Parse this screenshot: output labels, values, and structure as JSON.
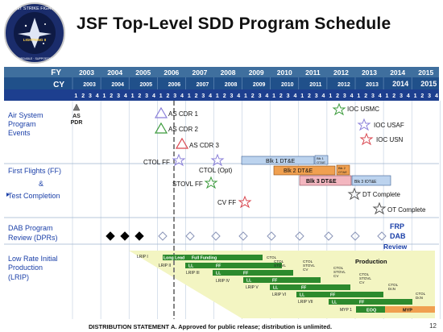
{
  "header": {
    "logo_lines": [
      "JOINT STRIKE FIGHTER",
      "LIGHTNING II",
      "AFFORDABLE · SUPPORTABLE"
    ],
    "title": "JSF Top-Level SDD Program Schedule"
  },
  "timeline": {
    "fy_label": "FY",
    "cy_label": "CY",
    "fy_years": [
      "2003",
      "2004",
      "2005",
      "2006",
      "2007",
      "2008",
      "2009",
      "2010",
      "2011",
      "2012",
      "2013",
      "2014",
      "2015"
    ],
    "cy_years": [
      "2003",
      "2004",
      "2005",
      "2006",
      "2007",
      "2008",
      "2009",
      "2010",
      "2011",
      "2012",
      "2013",
      "2014",
      "2015"
    ],
    "quarters": [
      "1",
      "2",
      "3",
      "4"
    ]
  },
  "rows": {
    "air_system": [
      "Air System",
      "Program",
      "Events"
    ],
    "first_flights": "First Flights (FF)",
    "amp": "&",
    "test_completion": "Test Completion",
    "dab": [
      "DAB Program",
      "Review (DPRs)"
    ],
    "lrip": [
      "Low Rate Initial",
      "Production",
      "(LRIP)"
    ]
  },
  "events": {
    "as_pdr": [
      "AS",
      "PDR"
    ],
    "as_cdr1": "AS CDR 1",
    "as_cdr2": "AS CDR 2",
    "as_cdr3": "AS CDR 3",
    "ioc_usmc": "IOC USMC",
    "ioc_usaf": "IOC USAF",
    "ioc_usn": "IOC USN",
    "ctol_ff": "CTOL FF",
    "ctol_opt": "CTOL (Opt)",
    "stovl_ff": "STOVL FF",
    "cv_ff": "CV FF",
    "dt_complete": "DT Complete",
    "ot_complete": "OT Complete",
    "frp_dab_review": [
      "FRP",
      "DAB",
      "Review"
    ]
  },
  "blocks": {
    "blk1": "Blk 1 DT&E",
    "blk1_ot": [
      "Blk 1",
      "OT&E"
    ],
    "blk2": "Blk 2 DT&E",
    "blk2_ot": [
      "Blk 2",
      "OT&E"
    ],
    "blk3": "Blk 3 DT&E",
    "blk3_ot": "Blk 3 IOT&E"
  },
  "lrip": {
    "lots": [
      "LRIP I",
      "LRIP II",
      "LRIP III",
      "LRIP IV",
      "LRIP V",
      "LRIP VI",
      "LRIP VII"
    ],
    "long_lead": "Long Lead",
    "full_funding": "Full Funding",
    "ll": "LL",
    "ff": "FF",
    "ctol": "CTOL",
    "ctol_stovl": [
      "CTOL",
      "STOVL"
    ],
    "ctol_stovl_cv": [
      "CTOL",
      "STOVL",
      "CV"
    ],
    "ctol_cv": [
      "CTOL",
      "CV"
    ],
    "ctol_dcn": [
      "CTOL",
      "DcN"
    ],
    "production": "Production",
    "myp1": "MYP 1",
    "eoq": "EOQ",
    "myp": "MYP"
  },
  "footer": {
    "statement": "DISTRIBUTION STATEMENT A.  Approved for public release; distribution is unlimited.",
    "page_number": "12"
  },
  "colors": {
    "fy_bar": "#3f6f9e",
    "cy_bar": "#20508a",
    "quarter_bar": "#1d3f8f",
    "green_bar": "#2d8a2d",
    "blue_box": "#bcd3ee",
    "orange_box": "#f0a050",
    "pink_box": "#f3b6bf",
    "yellow_band": "#f3f5c2",
    "label_blue": "#1a3fa8"
  }
}
